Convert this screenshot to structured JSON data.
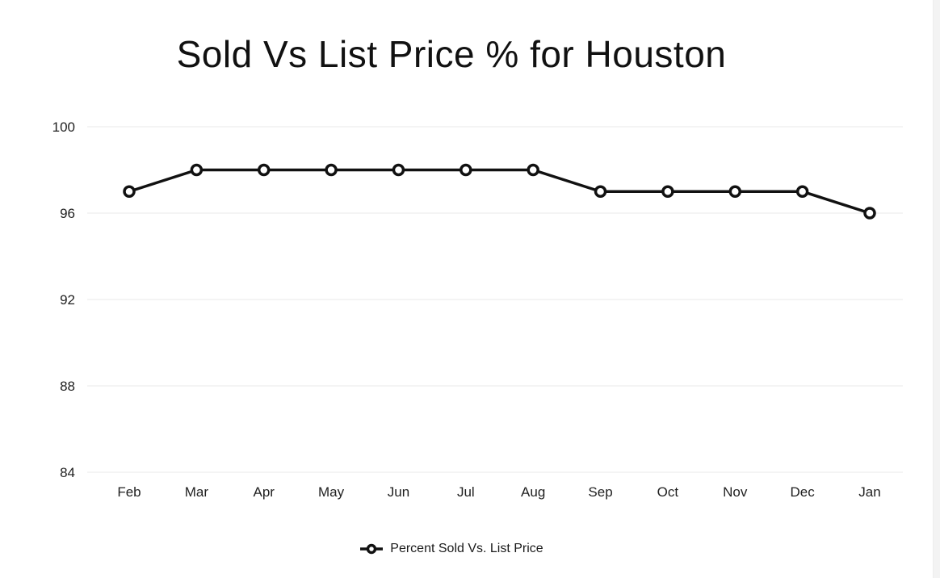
{
  "title": "Sold Vs List Price % for Houston",
  "legend": {
    "label": "Percent Sold Vs. List Price",
    "marker_icon": "line-with-hollow-circle"
  },
  "colors": {
    "line": "#111111",
    "marker_fill": "#ffffff",
    "grid": "#f0f0f0",
    "tick_text": "#1f1f1f",
    "background": "#ffffff",
    "scrollbar_track": "#f3f3f3"
  },
  "chart_data": {
    "type": "line",
    "title": "Sold Vs List Price % for Houston",
    "categories": [
      "Feb",
      "Mar",
      "Apr",
      "May",
      "Jun",
      "Jul",
      "Aug",
      "Sep",
      "Oct",
      "Nov",
      "Dec",
      "Jan"
    ],
    "series": [
      {
        "name": "Percent Sold Vs. List Price",
        "values": [
          97,
          98,
          98,
          98,
          98,
          98,
          98,
          97,
          97,
          97,
          97,
          96
        ]
      }
    ],
    "xlabel": "",
    "ylabel": "",
    "ylim": [
      84,
      100
    ],
    "yticks": [
      84,
      88,
      92,
      96,
      100
    ],
    "grid": "horizontal-only",
    "marker_style": "hollow-circle",
    "legend_position": "bottom"
  }
}
